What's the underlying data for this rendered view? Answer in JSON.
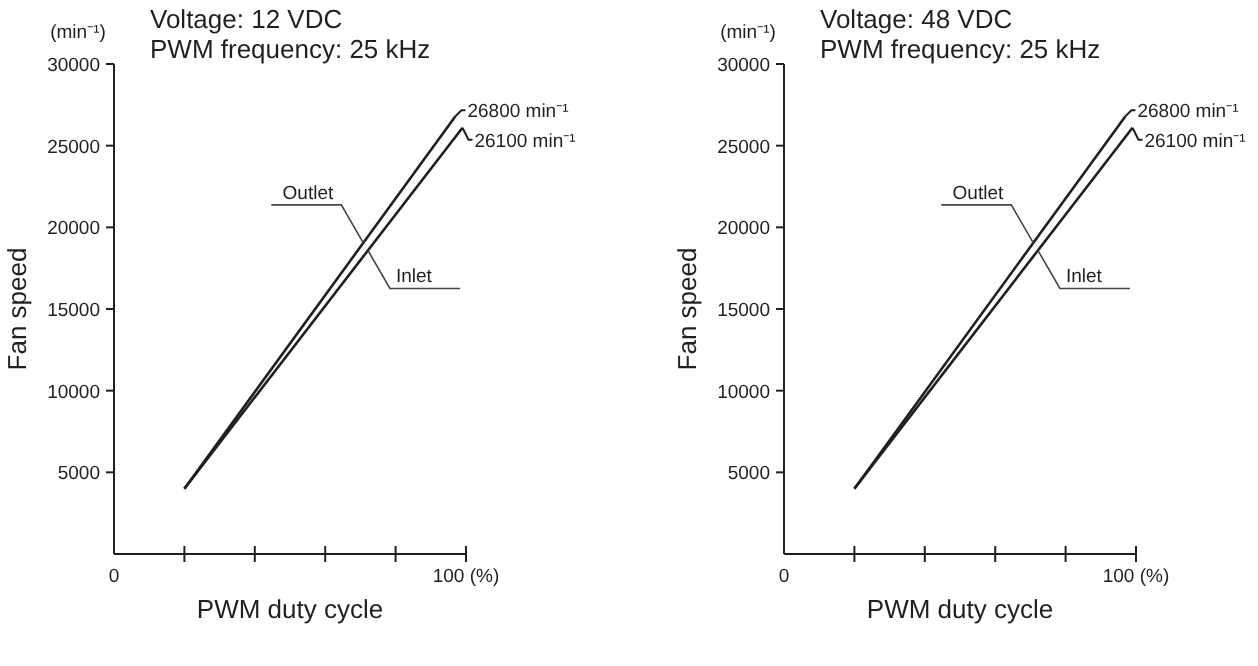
{
  "chart_data": [
    {
      "type": "line",
      "title": "Voltage: 12 VDC",
      "subtitle": "PWM frequency: 25 kHz",
      "xlabel": "PWM duty cycle",
      "ylabel": "Fan speed",
      "xlim": [
        0,
        100
      ],
      "ylim": [
        0,
        30000
      ],
      "xticks": [
        {
          "value": 0,
          "label": "0"
        },
        {
          "value": 20,
          "label": null
        },
        {
          "value": 40,
          "label": null
        },
        {
          "value": 60,
          "label": null
        },
        {
          "value": 80,
          "label": null
        },
        {
          "value": 100,
          "label": "100 (%)"
        }
      ],
      "yticks": [
        5000,
        10000,
        15000,
        20000,
        25000,
        30000
      ],
      "grid": false,
      "legend": false,
      "marker": "none",
      "line_style": "solid",
      "series": [
        {
          "name": "Outlet",
          "color": "#231f20",
          "x": [
            20,
            97
          ],
          "values": [
            4000,
            26800
          ]
        },
        {
          "name": "Inlet",
          "color": "#231f20",
          "x": [
            20,
            99
          ],
          "values": [
            4000,
            26100
          ]
        }
      ],
      "annotations": [
        "(min⁻¹)",
        "26800 min⁻¹",
        "26100 min⁻¹"
      ]
    },
    {
      "type": "line",
      "title": "Voltage: 48 VDC",
      "subtitle": "PWM frequency: 25 kHz",
      "xlabel": "PWM duty cycle",
      "ylabel": "Fan speed",
      "xlim": [
        0,
        100
      ],
      "ylim": [
        0,
        30000
      ],
      "xticks": [
        {
          "value": 0,
          "label": "0"
        },
        {
          "value": 20,
          "label": null
        },
        {
          "value": 40,
          "label": null
        },
        {
          "value": 60,
          "label": null
        },
        {
          "value": 80,
          "label": null
        },
        {
          "value": 100,
          "label": "100 (%)"
        }
      ],
      "yticks": [
        5000,
        10000,
        15000,
        20000,
        25000,
        30000
      ],
      "grid": false,
      "legend": false,
      "marker": "none",
      "line_style": "solid",
      "series": [
        {
          "name": "Outlet",
          "color": "#231f20",
          "x": [
            20,
            97
          ],
          "values": [
            4000,
            26800
          ]
        },
        {
          "name": "Inlet",
          "color": "#231f20",
          "x": [
            20,
            99
          ],
          "values": [
            4000,
            26100
          ]
        }
      ],
      "annotations": [
        "(min⁻¹)",
        "26800 min⁻¹",
        "26100 min⁻¹"
      ]
    }
  ]
}
